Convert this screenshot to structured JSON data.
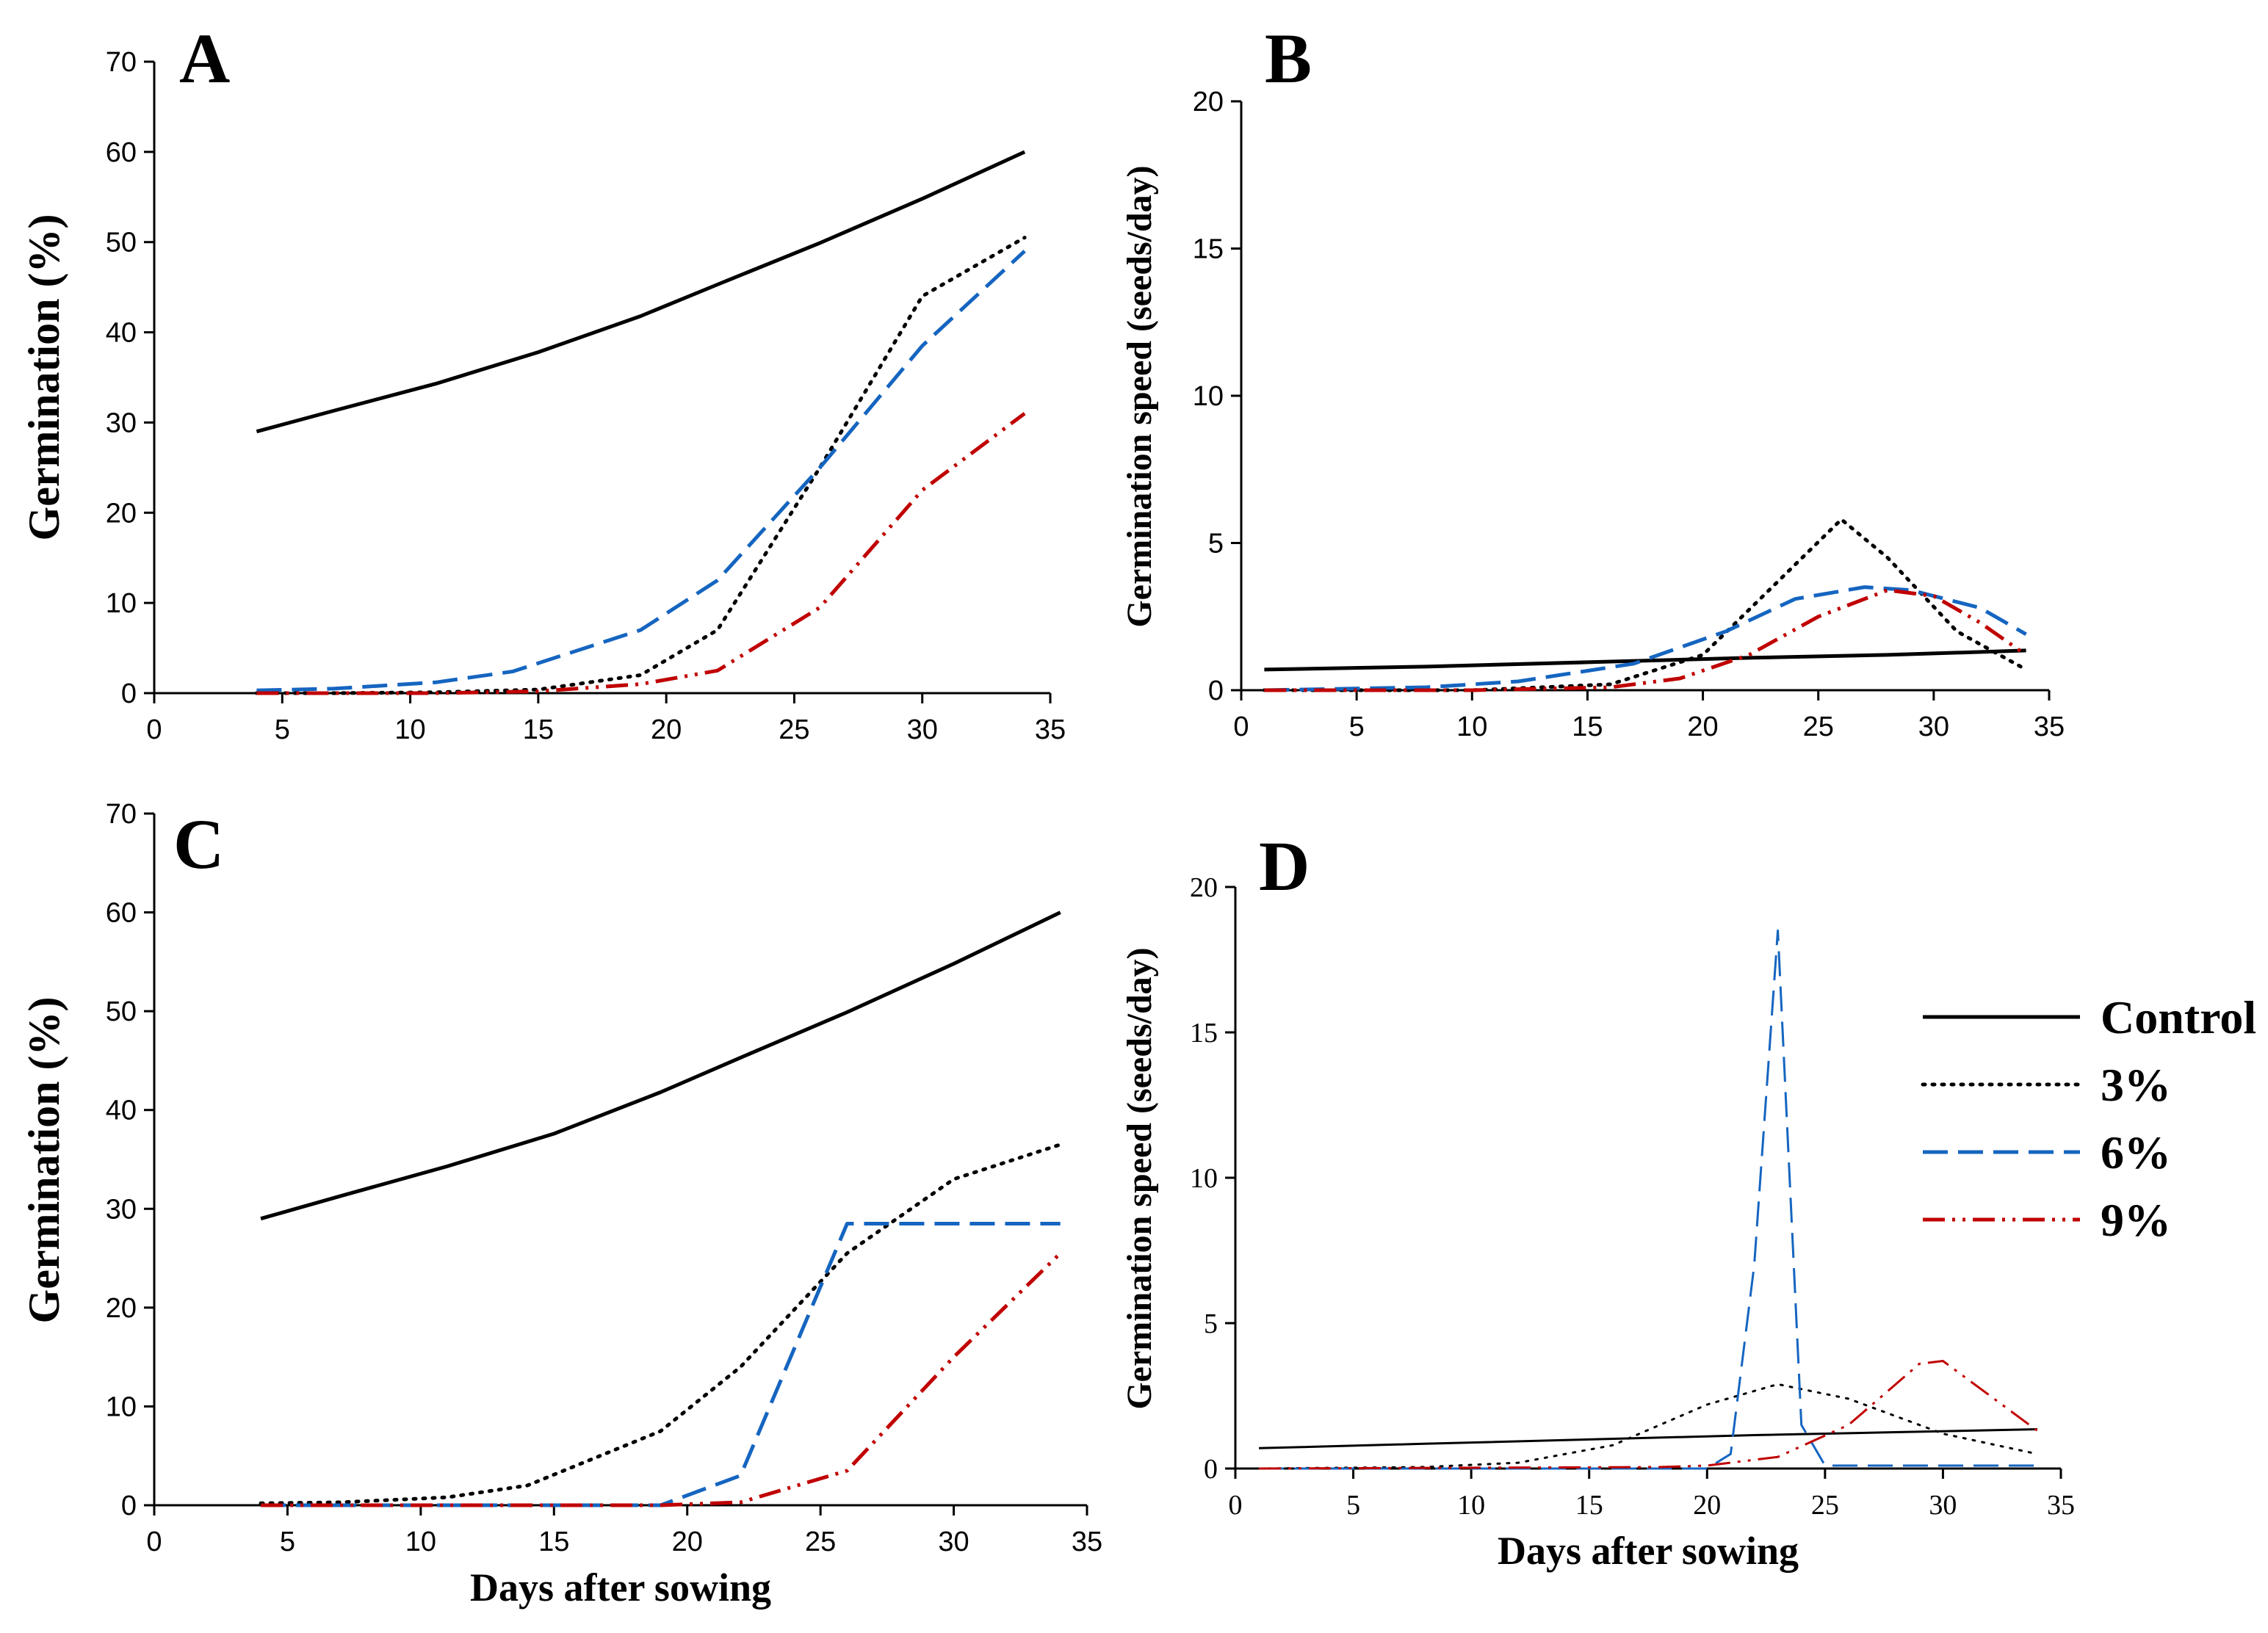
{
  "figure": {
    "x_axis_title": "Days after sowing",
    "legend": [
      {
        "name": "Control",
        "color": "#000000",
        "style": "solid"
      },
      {
        "name": "3%",
        "color": "#000000",
        "style": "dotted"
      },
      {
        "name": "6%",
        "color": "#1565c0",
        "style": "dashed"
      },
      {
        "name": "9%",
        "color": "#c00000",
        "style": "dashdot"
      }
    ]
  },
  "chart_data": [
    {
      "panel": "A",
      "type": "line",
      "ylabel": "Germination (%)",
      "xlabel": "",
      "xlim": [
        0,
        35
      ],
      "ylim": [
        0,
        70
      ],
      "xticks": [
        0,
        5,
        10,
        15,
        20,
        25,
        30,
        35
      ],
      "yticks": [
        0,
        10,
        20,
        30,
        40,
        50,
        60,
        70
      ],
      "series": [
        {
          "name": "Control",
          "x": [
            4,
            7,
            11,
            15,
            19,
            22,
            26,
            30,
            34
          ],
          "y": [
            29,
            31.3,
            34.3,
            37.8,
            41.8,
            45.3,
            49.9,
            54.8,
            60
          ]
        },
        {
          "name": "3%",
          "x": [
            4,
            7,
            11,
            15,
            19,
            22,
            26,
            30,
            34
          ],
          "y": [
            0,
            0,
            0.1,
            0.4,
            2,
            7,
            25,
            44,
            50.5
          ]
        },
        {
          "name": "6%",
          "x": [
            4,
            7,
            11,
            14,
            19,
            22,
            26,
            30,
            34
          ],
          "y": [
            0.3,
            0.5,
            1.2,
            2.4,
            7,
            12.5,
            25,
            38.5,
            49
          ]
        },
        {
          "name": "9%",
          "x": [
            4,
            7,
            11,
            15,
            19,
            22,
            26,
            30,
            34
          ],
          "y": [
            0,
            0,
            0,
            0.2,
            1,
            2.5,
            9.5,
            22.5,
            31
          ]
        }
      ]
    },
    {
      "panel": "B",
      "type": "line",
      "ylabel": "Germination speed (seeds/day)",
      "xlabel": "",
      "xlim": [
        0,
        35
      ],
      "ylim": [
        0,
        20
      ],
      "xticks": [
        0,
        5,
        10,
        15,
        20,
        25,
        30,
        35
      ],
      "yticks": [
        0,
        5,
        10,
        15,
        20
      ],
      "series": [
        {
          "name": "Control",
          "x": [
            1,
            8,
            15,
            22,
            28,
            34
          ],
          "y": [
            0.7,
            0.8,
            0.95,
            1.1,
            1.2,
            1.35
          ]
        },
        {
          "name": "3%",
          "x": [
            1,
            10,
            16,
            20,
            23,
            26,
            28,
            31,
            34
          ],
          "y": [
            0,
            0,
            0.2,
            1.2,
            3.5,
            5.8,
            4.5,
            2,
            0.7
          ]
        },
        {
          "name": "6%",
          "x": [
            1,
            8,
            12,
            17,
            21,
            24,
            27,
            29,
            32,
            34
          ],
          "y": [
            0,
            0.1,
            0.3,
            0.9,
            2,
            3.1,
            3.5,
            3.4,
            2.8,
            1.9
          ]
        },
        {
          "name": "9%",
          "x": [
            1,
            10,
            16,
            19,
            22,
            25,
            28,
            30,
            32,
            34
          ],
          "y": [
            0,
            0,
            0.1,
            0.4,
            1.2,
            2.5,
            3.4,
            3.2,
            2.3,
            1.2
          ]
        }
      ]
    },
    {
      "panel": "C",
      "type": "line",
      "ylabel": "Germination (%)",
      "xlabel": "Days after sowing",
      "xlim": [
        0,
        35
      ],
      "ylim": [
        0,
        70
      ],
      "xticks": [
        0,
        5,
        10,
        15,
        20,
        25,
        30,
        35
      ],
      "yticks": [
        0,
        10,
        20,
        30,
        40,
        50,
        60,
        70
      ],
      "series": [
        {
          "name": "Control",
          "x": [
            4,
            7,
            11,
            15,
            19,
            22,
            26,
            30,
            34
          ],
          "y": [
            29,
            31.3,
            34.3,
            37.6,
            41.8,
            45.3,
            49.9,
            54.8,
            60
          ]
        },
        {
          "name": "3%",
          "x": [
            4,
            7,
            11,
            14,
            19,
            22,
            26,
            30,
            34
          ],
          "y": [
            0.2,
            0.3,
            0.8,
            2,
            7.5,
            14,
            25.5,
            33,
            36.5
          ]
        },
        {
          "name": "6%",
          "x": [
            4,
            7,
            11,
            15,
            19,
            22,
            26,
            30,
            34
          ],
          "y": [
            0,
            0,
            0,
            0,
            0,
            3,
            28.5,
            28.5,
            28.5
          ]
        },
        {
          "name": "9%",
          "x": [
            4,
            7,
            11,
            15,
            19,
            22,
            26,
            30,
            34
          ],
          "y": [
            0,
            0,
            0,
            0,
            0,
            0.3,
            3.5,
            15,
            25.5
          ]
        }
      ]
    },
    {
      "panel": "D",
      "type": "line",
      "ylabel": "Germination speed (seeds/day)",
      "xlabel": "Days after sowing",
      "xlim": [
        0,
        35
      ],
      "ylim": [
        0,
        20
      ],
      "xticks": [
        0,
        5,
        10,
        15,
        20,
        25,
        30,
        35
      ],
      "yticks": [
        0,
        5,
        10,
        15,
        20
      ],
      "series": [
        {
          "name": "Control",
          "x": [
            1,
            8,
            15,
            22,
            28,
            34
          ],
          "y": [
            0.7,
            0.85,
            1,
            1.15,
            1.25,
            1.35
          ]
        },
        {
          "name": "3%",
          "x": [
            1,
            8,
            12,
            16,
            20,
            23,
            26,
            30,
            34
          ],
          "y": [
            0,
            0.05,
            0.2,
            0.8,
            2.2,
            2.9,
            2.4,
            1.2,
            0.5
          ]
        },
        {
          "name": "6%",
          "x": [
            1,
            20,
            21,
            22,
            23,
            24,
            25,
            34
          ],
          "y": [
            0,
            0,
            0.5,
            7,
            18.5,
            1.5,
            0.1,
            0.1
          ]
        },
        {
          "name": "9%",
          "x": [
            1,
            18,
            20,
            23,
            26,
            29,
            30,
            34
          ],
          "y": [
            0,
            0.05,
            0.1,
            0.4,
            1.5,
            3.6,
            3.7,
            1.3
          ]
        }
      ]
    }
  ]
}
